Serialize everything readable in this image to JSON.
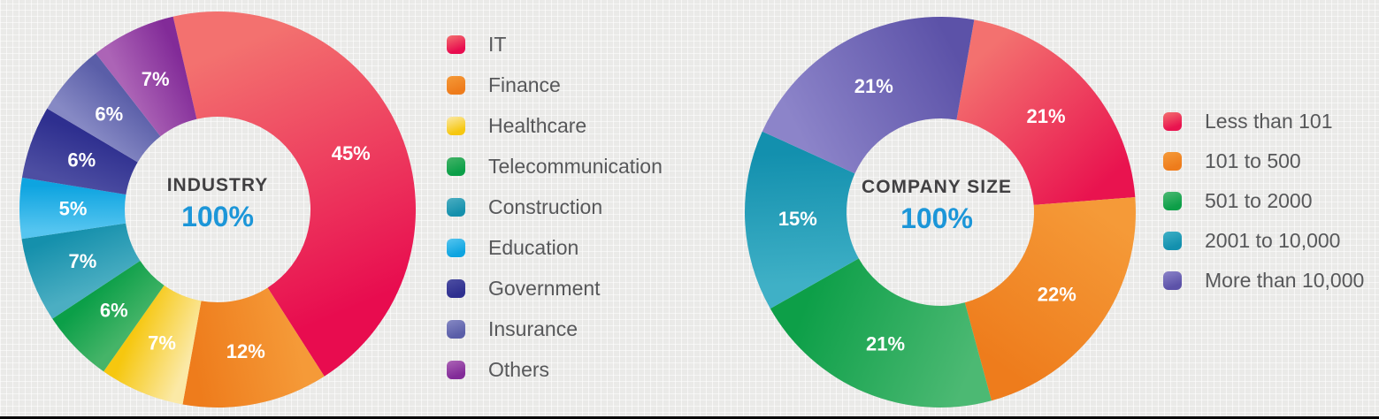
{
  "page": {
    "background_color": "#f0efed",
    "bottom_bar_color": "#050505"
  },
  "colors": {
    "title_text": "#414042",
    "total_text": "#1C96D8",
    "slice_label_text": "#FFFFFF",
    "legend_text": "#57585A"
  },
  "chart_data": [
    {
      "type": "pie",
      "variant": "donut",
      "title": "INDUSTRY",
      "center_total": "100%",
      "start_angle_deg": -13,
      "legend_position": "right",
      "slices": [
        {
          "label": "IT",
          "value": 45,
          "display": "45%",
          "color": "#E80C4F",
          "color_light": "#F3716F"
        },
        {
          "label": "Finance",
          "value": 12,
          "display": "12%",
          "color": "#EE7C1C",
          "color_light": "#F59A38"
        },
        {
          "label": "Healthcare",
          "value": 7,
          "display": "7%",
          "color": "#F6C70F",
          "color_light": "#FBE9A6"
        },
        {
          "label": "Telecommunication",
          "value": 6,
          "display": "6%",
          "color": "#0B9F48",
          "color_light": "#45B468"
        },
        {
          "label": "Construction",
          "value": 7,
          "display": "7%",
          "color": "#1590AC",
          "color_light": "#4BAEC2"
        },
        {
          "label": "Education",
          "value": 5,
          "display": "5%",
          "color": "#0EA4E0",
          "color_light": "#55C5F0"
        },
        {
          "label": "Government",
          "value": 6,
          "display": "6%",
          "color": "#2E2F8F",
          "color_light": "#4D4EA2"
        },
        {
          "label": "Insurance",
          "value": 6,
          "display": "6%",
          "color": "#5A5EA8",
          "color_light": "#8689C4"
        },
        {
          "label": "Others",
          "value": 7,
          "display": "7%",
          "color": "#822B98",
          "color_light": "#AC64B6"
        }
      ]
    },
    {
      "type": "pie",
      "variant": "donut",
      "title": "COMPANY SIZE",
      "center_total": "100%",
      "start_angle_deg": 10,
      "legend_position": "right",
      "slices": [
        {
          "label": "Less than 101",
          "value": 21,
          "display": "21%",
          "color": "#E9134F",
          "color_light": "#F3716F"
        },
        {
          "label": "101 to 500",
          "value": 22,
          "display": "22%",
          "color": "#EE7C1C",
          "color_light": "#F59A38"
        },
        {
          "label": "501 to 2000",
          "value": 21,
          "display": "21%",
          "color": "#0D9F48",
          "color_light": "#4CB973"
        },
        {
          "label": "2001 to 10,000",
          "value": 15,
          "display": "15%",
          "color": "#1390AE",
          "color_light": "#3FB0C6"
        },
        {
          "label": "More than 10,000",
          "value": 21,
          "display": "21%",
          "color": "#5C52A8",
          "color_light": "#8C84C9"
        }
      ]
    }
  ]
}
